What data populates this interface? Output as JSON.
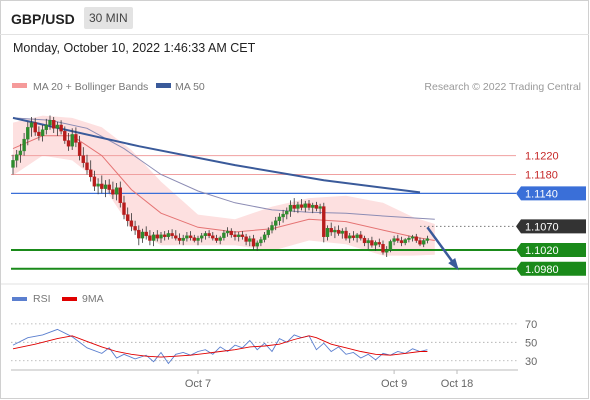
{
  "header": {
    "pair": "GBP/USD",
    "timeframe": "30 MIN"
  },
  "timestamp": "Monday, October 10, 2022 1:46:33 AM CET",
  "legend_main": [
    {
      "label": "MA 20 + Bollinger Bands",
      "color": "#f59a9a"
    },
    {
      "label": "MA 50",
      "color": "#3a5a9a"
    }
  ],
  "credit": "Research © 2022 Trading Central",
  "legend_rsi": [
    {
      "label": "RSI",
      "color": "#5b7fcf"
    },
    {
      "label": "9MA",
      "color": "#e00000"
    }
  ],
  "colors": {
    "bull": "#2e8b2e",
    "bear": "#b71c1c",
    "band": "#fde0e0",
    "trend": "#3a5a9a",
    "support": "#1a8a1a",
    "pivot": "#3a6fd8"
  },
  "chart_data": [
    {
      "type": "candlestick",
      "yrange": [
        1.0952,
        1.1338
      ],
      "x_ticks": [
        {
          "label": "Oct 7",
          "index": 50
        },
        {
          "label": "Oct 9",
          "index": 103
        },
        {
          "label": "Oct 18",
          "index": 120
        }
      ],
      "n_slots": 124,
      "candles": [
        [
          1.1195,
          1.1222,
          1.118,
          1.121
        ],
        [
          1.121,
          1.1232,
          1.1195,
          1.1222
        ],
        [
          1.1222,
          1.1245,
          1.1205,
          1.123
        ],
        [
          1.123,
          1.1268,
          1.122,
          1.1255
        ],
        [
          1.1255,
          1.1292,
          1.1242,
          1.128
        ],
        [
          1.128,
          1.1302,
          1.126,
          1.129
        ],
        [
          1.129,
          1.13,
          1.1262,
          1.127
        ],
        [
          1.127,
          1.1282,
          1.1252,
          1.1262
        ],
        [
          1.1262,
          1.1285,
          1.125,
          1.1275
        ],
        [
          1.1275,
          1.1298,
          1.1265,
          1.1285
        ],
        [
          1.1285,
          1.1305,
          1.1275,
          1.1295
        ],
        [
          1.1295,
          1.1302,
          1.1268,
          1.1278
        ],
        [
          1.1278,
          1.1292,
          1.1262,
          1.1285
        ],
        [
          1.1285,
          1.1295,
          1.1265,
          1.1272
        ],
        [
          1.1272,
          1.1282,
          1.1245,
          1.1252
        ],
        [
          1.1252,
          1.1268,
          1.123,
          1.124
        ],
        [
          1.124,
          1.1278,
          1.1232,
          1.1265
        ],
        [
          1.1265,
          1.128,
          1.1238,
          1.1248
        ],
        [
          1.1248,
          1.1262,
          1.121,
          1.122
        ],
        [
          1.122,
          1.1238,
          1.1195,
          1.1205
        ],
        [
          1.1205,
          1.1222,
          1.118,
          1.119
        ],
        [
          1.119,
          1.121,
          1.1165,
          1.1175
        ],
        [
          1.1175,
          1.1188,
          1.1145,
          1.1155
        ],
        [
          1.1155,
          1.1172,
          1.1138,
          1.116
        ],
        [
          1.116,
          1.1178,
          1.114,
          1.115
        ],
        [
          1.115,
          1.1168,
          1.1132,
          1.1158
        ],
        [
          1.1158,
          1.117,
          1.114,
          1.1148
        ],
        [
          1.1148,
          1.1165,
          1.1128,
          1.1138
        ],
        [
          1.1138,
          1.1162,
          1.1125,
          1.1152
        ],
        [
          1.1152,
          1.1165,
          1.111,
          1.112
        ],
        [
          1.112,
          1.1135,
          1.1085,
          1.1095
        ],
        [
          1.1095,
          1.111,
          1.107,
          1.1082
        ],
        [
          1.1082,
          1.1098,
          1.106,
          1.107
        ],
        [
          1.107,
          1.1082,
          1.1052,
          1.1062
        ],
        [
          1.1062,
          1.1072,
          1.103,
          1.1045
        ],
        [
          1.1045,
          1.1065,
          1.1035,
          1.1058
        ],
        [
          1.1058,
          1.107,
          1.1042,
          1.105
        ],
        [
          1.105,
          1.1062,
          1.103,
          1.104
        ],
        [
          1.104,
          1.1058,
          1.1028,
          1.1052
        ],
        [
          1.1052,
          1.1062,
          1.1038,
          1.1045
        ],
        [
          1.1045,
          1.1058,
          1.1035,
          1.1052
        ],
        [
          1.1052,
          1.106,
          1.104,
          1.1048
        ],
        [
          1.1048,
          1.1062,
          1.1042,
          1.1055
        ],
        [
          1.1055,
          1.1064,
          1.1044,
          1.105
        ],
        [
          1.105,
          1.1062,
          1.104,
          1.1045
        ],
        [
          1.1045,
          1.1055,
          1.1032,
          1.104
        ],
        [
          1.104,
          1.1052,
          1.103,
          1.1045
        ],
        [
          1.1045,
          1.1058,
          1.1038,
          1.105
        ],
        [
          1.105,
          1.106,
          1.104,
          1.1046
        ],
        [
          1.1046,
          1.1052,
          1.1036,
          1.104
        ],
        [
          1.104,
          1.105,
          1.103,
          1.1045
        ],
        [
          1.1045,
          1.1056,
          1.1036,
          1.105
        ],
        [
          1.105,
          1.106,
          1.1042,
          1.1055
        ],
        [
          1.1055,
          1.1062,
          1.1045,
          1.105
        ],
        [
          1.105,
          1.1058,
          1.104,
          1.1045
        ],
        [
          1.1045,
          1.1052,
          1.1035,
          1.104
        ],
        [
          1.104,
          1.105,
          1.1032,
          1.1046
        ],
        [
          1.1046,
          1.1062,
          1.104,
          1.1056
        ],
        [
          1.1056,
          1.1068,
          1.1048,
          1.106
        ],
        [
          1.106,
          1.1066,
          1.1046,
          1.1052
        ],
        [
          1.1052,
          1.106,
          1.104,
          1.1048
        ],
        [
          1.1048,
          1.1058,
          1.1038,
          1.1052
        ],
        [
          1.1052,
          1.106,
          1.1042,
          1.1048
        ],
        [
          1.1048,
          1.1054,
          1.103,
          1.1038
        ],
        [
          1.1038,
          1.105,
          1.1028,
          1.1044
        ],
        [
          1.1044,
          1.1052,
          1.102,
          1.1028
        ],
        [
          1.1028,
          1.104,
          1.1018,
          1.1035
        ],
        [
          1.1035,
          1.1048,
          1.1028,
          1.1042
        ],
        [
          1.1042,
          1.1058,
          1.1036,
          1.1052
        ],
        [
          1.1052,
          1.1068,
          1.1046,
          1.1062
        ],
        [
          1.1062,
          1.108,
          1.1055,
          1.1072
        ],
        [
          1.1072,
          1.109,
          1.1062,
          1.1082
        ],
        [
          1.1082,
          1.1098,
          1.1072,
          1.109
        ],
        [
          1.109,
          1.1105,
          1.1078,
          1.1096
        ],
        [
          1.1096,
          1.111,
          1.1085,
          1.1102
        ],
        [
          1.1102,
          1.1125,
          1.109,
          1.1115
        ],
        [
          1.1115,
          1.113,
          1.11,
          1.1108
        ],
        [
          1.1108,
          1.1122,
          1.1098,
          1.1116
        ],
        [
          1.1116,
          1.1128,
          1.1104,
          1.111
        ],
        [
          1.111,
          1.1124,
          1.11,
          1.1118
        ],
        [
          1.1118,
          1.1126,
          1.1104,
          1.111
        ],
        [
          1.111,
          1.112,
          1.1098,
          1.1115
        ],
        [
          1.1115,
          1.1122,
          1.1102,
          1.1108
        ],
        [
          1.1108,
          1.1118,
          1.1096,
          1.1112
        ],
        [
          1.1112,
          1.112,
          1.1036,
          1.1048
        ],
        [
          1.1048,
          1.1072,
          1.104,
          1.1066
        ],
        [
          1.1066,
          1.1078,
          1.105,
          1.1058
        ],
        [
          1.1058,
          1.107,
          1.1045,
          1.1062
        ],
        [
          1.1062,
          1.1072,
          1.105,
          1.1055
        ],
        [
          1.1055,
          1.1066,
          1.1044,
          1.106
        ],
        [
          1.106,
          1.1068,
          1.104,
          1.1045
        ],
        [
          1.1045,
          1.1056,
          1.1035,
          1.105
        ],
        [
          1.105,
          1.106,
          1.104,
          1.1046
        ],
        [
          1.1046,
          1.1056,
          1.1036,
          1.1052
        ],
        [
          1.1052,
          1.106,
          1.104,
          1.1045
        ],
        [
          1.1045,
          1.105,
          1.1028,
          1.1035
        ],
        [
          1.1035,
          1.1045,
          1.1022,
          1.104
        ],
        [
          1.104,
          1.1048,
          1.1025,
          1.103
        ],
        [
          1.103,
          1.104,
          1.1018,
          1.1036
        ],
        [
          1.1036,
          1.1044,
          1.1026,
          1.1032
        ],
        [
          1.1032,
          1.104,
          1.101,
          1.1015
        ],
        [
          1.1015,
          1.1028,
          1.1005,
          1.102
        ],
        [
          1.102,
          1.1042,
          1.1015,
          1.1038
        ],
        [
          1.1038,
          1.105,
          1.103,
          1.1044
        ],
        [
          1.1044,
          1.1052,
          1.1035,
          1.104
        ],
        [
          1.104,
          1.1048,
          1.1028,
          1.1035
        ],
        [
          1.1035,
          1.1045,
          1.103,
          1.1042
        ],
        [
          1.1042,
          1.105,
          1.1036,
          1.1045
        ],
        [
          1.1045,
          1.1052,
          1.1038,
          1.1048
        ],
        [
          1.1048,
          1.1054,
          1.1035,
          1.104
        ],
        [
          1.104,
          1.1046,
          1.1028,
          1.1032
        ],
        [
          1.1032,
          1.1044,
          1.1026,
          1.104
        ],
        [
          1.104,
          1.105,
          1.1034,
          1.1044
        ]
      ],
      "ma20": [
        [
          0,
          1.1235
        ],
        [
          8,
          1.1262
        ],
        [
          16,
          1.1262
        ],
        [
          24,
          1.122
        ],
        [
          32,
          1.1148
        ],
        [
          40,
          1.1098
        ],
        [
          50,
          1.1068
        ],
        [
          60,
          1.1058
        ],
        [
          70,
          1.1065
        ],
        [
          80,
          1.1085
        ],
        [
          90,
          1.108
        ],
        [
          100,
          1.1062
        ],
        [
          108,
          1.1048
        ],
        [
          114,
          1.104
        ]
      ],
      "bb_upper": [
        [
          0,
          1.129
        ],
        [
          8,
          1.1305
        ],
        [
          16,
          1.13
        ],
        [
          24,
          1.128
        ],
        [
          32,
          1.1232
        ],
        [
          40,
          1.1165
        ],
        [
          50,
          1.1095
        ],
        [
          60,
          1.1085
        ],
        [
          70,
          1.1112
        ],
        [
          80,
          1.113
        ],
        [
          90,
          1.1135
        ],
        [
          100,
          1.112
        ],
        [
          108,
          1.109
        ],
        [
          114,
          1.1075
        ]
      ],
      "bb_lower": [
        [
          0,
          1.1178
        ],
        [
          8,
          1.122
        ],
        [
          16,
          1.121
        ],
        [
          24,
          1.116
        ],
        [
          32,
          1.1065
        ],
        [
          40,
          1.103
        ],
        [
          50,
          1.103
        ],
        [
          60,
          1.103
        ],
        [
          70,
          1.1018
        ],
        [
          80,
          1.104
        ],
        [
          90,
          1.1032
        ],
        [
          100,
          1.1008
        ],
        [
          108,
          1.1008
        ],
        [
          114,
          1.101
        ]
      ],
      "ma50": [
        [
          0,
          1.13
        ],
        [
          10,
          1.1295
        ],
        [
          20,
          1.1278
        ],
        [
          30,
          1.1235
        ],
        [
          40,
          1.118
        ],
        [
          50,
          1.1145
        ],
        [
          60,
          1.112
        ],
        [
          70,
          1.1105
        ],
        [
          80,
          1.11
        ],
        [
          90,
          1.1098
        ],
        [
          100,
          1.1092
        ],
        [
          108,
          1.1088
        ],
        [
          114,
          1.1085
        ]
      ],
      "trendline": [
        [
          0,
          1.13
        ],
        [
          34,
          1.124
        ],
        [
          60,
          1.12
        ],
        [
          84,
          1.1168
        ],
        [
          110,
          1.1142
        ]
      ],
      "levels": [
        {
          "value": 1.122,
          "label": "1.1220",
          "style": "resistance"
        },
        {
          "value": 1.118,
          "label": "1.1180",
          "style": "resistance"
        },
        {
          "value": 1.114,
          "label": "1.1140",
          "style": "pivot"
        },
        {
          "value": 1.107,
          "label": "1.1070",
          "style": "last"
        },
        {
          "value": 1.102,
          "label": "1.1020",
          "style": "support"
        },
        {
          "value": 1.098,
          "label": "1.0980",
          "style": "support"
        }
      ],
      "forecast_arrow": [
        [
          112,
          1.1068
        ],
        [
          120,
          1.0982
        ]
      ]
    },
    {
      "type": "line",
      "yrange": [
        20,
        85
      ],
      "y_ticks": [
        70,
        50,
        30
      ],
      "rsi": [
        [
          0,
          47
        ],
        [
          4,
          55
        ],
        [
          8,
          58
        ],
        [
          12,
          64
        ],
        [
          16,
          56
        ],
        [
          20,
          44
        ],
        [
          24,
          38
        ],
        [
          26,
          44
        ],
        [
          28,
          33
        ],
        [
          30,
          37
        ],
        [
          33,
          32
        ],
        [
          36,
          36
        ],
        [
          38,
          29
        ],
        [
          40,
          39
        ],
        [
          42,
          27
        ],
        [
          44,
          37
        ],
        [
          46,
          39
        ],
        [
          48,
          36
        ],
        [
          50,
          40
        ],
        [
          52,
          42
        ],
        [
          54,
          37
        ],
        [
          56,
          45
        ],
        [
          58,
          40
        ],
        [
          60,
          47
        ],
        [
          62,
          44
        ],
        [
          64,
          52
        ],
        [
          66,
          42
        ],
        [
          68,
          49
        ],
        [
          70,
          40
        ],
        [
          72,
          54
        ],
        [
          74,
          50
        ],
        [
          76,
          58
        ],
        [
          78,
          55
        ],
        [
          80,
          57
        ],
        [
          82,
          42
        ],
        [
          84,
          49
        ],
        [
          86,
          40
        ],
        [
          88,
          45
        ],
        [
          90,
          37
        ],
        [
          92,
          39
        ],
        [
          94,
          33
        ],
        [
          96,
          37
        ],
        [
          98,
          31
        ],
        [
          100,
          38
        ],
        [
          102,
          36
        ],
        [
          104,
          40
        ],
        [
          106,
          38
        ],
        [
          108,
          43
        ],
        [
          110,
          40
        ],
        [
          112,
          42
        ]
      ],
      "ma9": [
        [
          0,
          43
        ],
        [
          6,
          48
        ],
        [
          12,
          54
        ],
        [
          16,
          57
        ],
        [
          20,
          51
        ],
        [
          24,
          45
        ],
        [
          28,
          40
        ],
        [
          32,
          37
        ],
        [
          36,
          35
        ],
        [
          40,
          34
        ],
        [
          44,
          35
        ],
        [
          48,
          36
        ],
        [
          52,
          38
        ],
        [
          56,
          40
        ],
        [
          60,
          42
        ],
        [
          64,
          45
        ],
        [
          68,
          46
        ],
        [
          72,
          48
        ],
        [
          76,
          53
        ],
        [
          80,
          57
        ],
        [
          82,
          55
        ],
        [
          86,
          48
        ],
        [
          90,
          44
        ],
        [
          94,
          40
        ],
        [
          98,
          37
        ],
        [
          102,
          36
        ],
        [
          106,
          38
        ],
        [
          110,
          40
        ],
        [
          112,
          40
        ]
      ]
    }
  ]
}
